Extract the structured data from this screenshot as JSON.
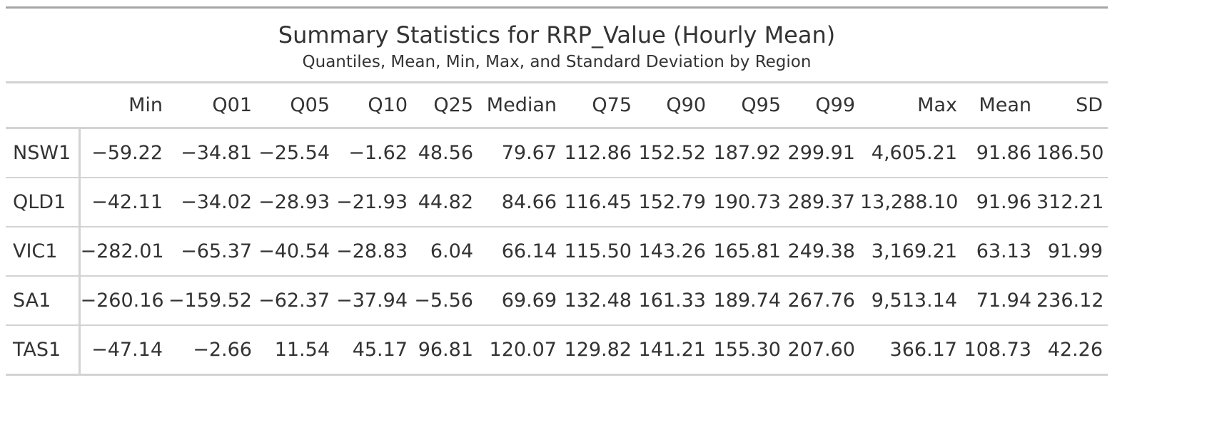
{
  "title": "Summary Statistics for RRP_Value (Hourly Mean)",
  "subtitle": "Quantiles, Mean, Min, Max, and Standard Deviation by Region",
  "columns": [
    "Min",
    "Q01",
    "Q05",
    "Q10",
    "Q25",
    "Median",
    "Q75",
    "Q90",
    "Q95",
    "Q99",
    "Max",
    "Mean",
    "SD"
  ],
  "rows": [
    {
      "region": "NSW1",
      "values": [
        "−59.22",
        "−34.81",
        "−25.54",
        "−1.62",
        "48.56",
        "79.67",
        "112.86",
        "152.52",
        "187.92",
        "299.91",
        "4,605.21",
        "91.86",
        "186.50"
      ]
    },
    {
      "region": "QLD1",
      "values": [
        "−42.11",
        "−34.02",
        "−28.93",
        "−21.93",
        "44.82",
        "84.66",
        "116.45",
        "152.79",
        "190.73",
        "289.37",
        "13,288.10",
        "91.96",
        "312.21"
      ]
    },
    {
      "region": "VIC1",
      "values": [
        "−282.01",
        "−65.37",
        "−40.54",
        "−28.83",
        "6.04",
        "66.14",
        "115.50",
        "143.26",
        "165.81",
        "249.38",
        "3,169.21",
        "63.13",
        "91.99"
      ]
    },
    {
      "region": "SA1",
      "values": [
        "−260.16",
        "−159.52",
        "−62.37",
        "−37.94",
        "−5.56",
        "69.69",
        "132.48",
        "161.33",
        "189.74",
        "267.76",
        "9,513.14",
        "71.94",
        "236.12"
      ]
    },
    {
      "region": "TAS1",
      "values": [
        "−47.14",
        "−2.66",
        "11.54",
        "45.17",
        "96.81",
        "120.07",
        "129.82",
        "141.21",
        "155.30",
        "207.60",
        "366.17",
        "108.73",
        "42.26"
      ]
    }
  ]
}
